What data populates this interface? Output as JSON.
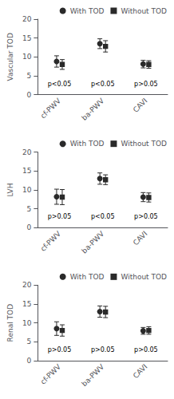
{
  "chart_data": [
    {
      "type": "scatter",
      "ylabel": "Vascular TOD",
      "categories": [
        "cf-PWV",
        "ba-PWV",
        "CAVI"
      ],
      "series": [
        {
          "name": "With TOD",
          "color": "#2a2a2a",
          "marker": "circle",
          "values": [
            8.8,
            13.5,
            8.1
          ],
          "errors": [
            1.5,
            1.3,
            1.0
          ]
        },
        {
          "name": "Without TOD",
          "color": "#2a2a2a",
          "marker": "square",
          "values": [
            8.0,
            12.8,
            8.0
          ],
          "errors": [
            1.3,
            1.5,
            1.0
          ]
        }
      ],
      "annotations": [
        "p<0.05",
        "p<0.05",
        "p>0.05"
      ],
      "ylim": [
        0,
        20
      ],
      "yticks": [
        0,
        5,
        10,
        15,
        20
      ],
      "grid": false,
      "legend": "upper right"
    },
    {
      "type": "scatter",
      "ylabel": "LVH",
      "categories": [
        "cf-PWV",
        "ba-PWV",
        "CAVI"
      ],
      "series": [
        {
          "name": "With TOD",
          "color": "#2a2a2a",
          "marker": "circle",
          "values": [
            8.2,
            13.0,
            8.1
          ],
          "errors": [
            2.0,
            1.5,
            1.2
          ]
        },
        {
          "name": "Without TOD",
          "color": "#2a2a2a",
          "marker": "square",
          "values": [
            8.1,
            12.7,
            8.0
          ],
          "errors": [
            2.0,
            1.3,
            1.2
          ]
        }
      ],
      "annotations": [
        "p>0.05",
        "p<0.05",
        "p>0.05"
      ],
      "ylim": [
        0,
        20
      ],
      "yticks": [
        0,
        5,
        10,
        15,
        20
      ],
      "grid": false,
      "legend": "upper right"
    },
    {
      "type": "scatter",
      "ylabel": "Renal TOD",
      "categories": [
        "cf-PWV",
        "ba-PWV",
        "CAVI"
      ],
      "series": [
        {
          "name": "With TOD",
          "color": "#2a2a2a",
          "marker": "circle",
          "values": [
            8.5,
            13.0,
            7.9
          ],
          "errors": [
            1.8,
            1.5,
            0.9
          ]
        },
        {
          "name": "Without TOD",
          "color": "#2a2a2a",
          "marker": "square",
          "values": [
            8.0,
            12.9,
            8.0
          ],
          "errors": [
            1.5,
            1.5,
            1.0
          ]
        }
      ],
      "annotations": [
        "p>0.05",
        "p>0.05",
        "p>0.05"
      ],
      "ylim": [
        0,
        20
      ],
      "yticks": [
        0,
        5,
        10,
        15,
        20
      ],
      "grid": false,
      "legend": "upper right"
    }
  ]
}
